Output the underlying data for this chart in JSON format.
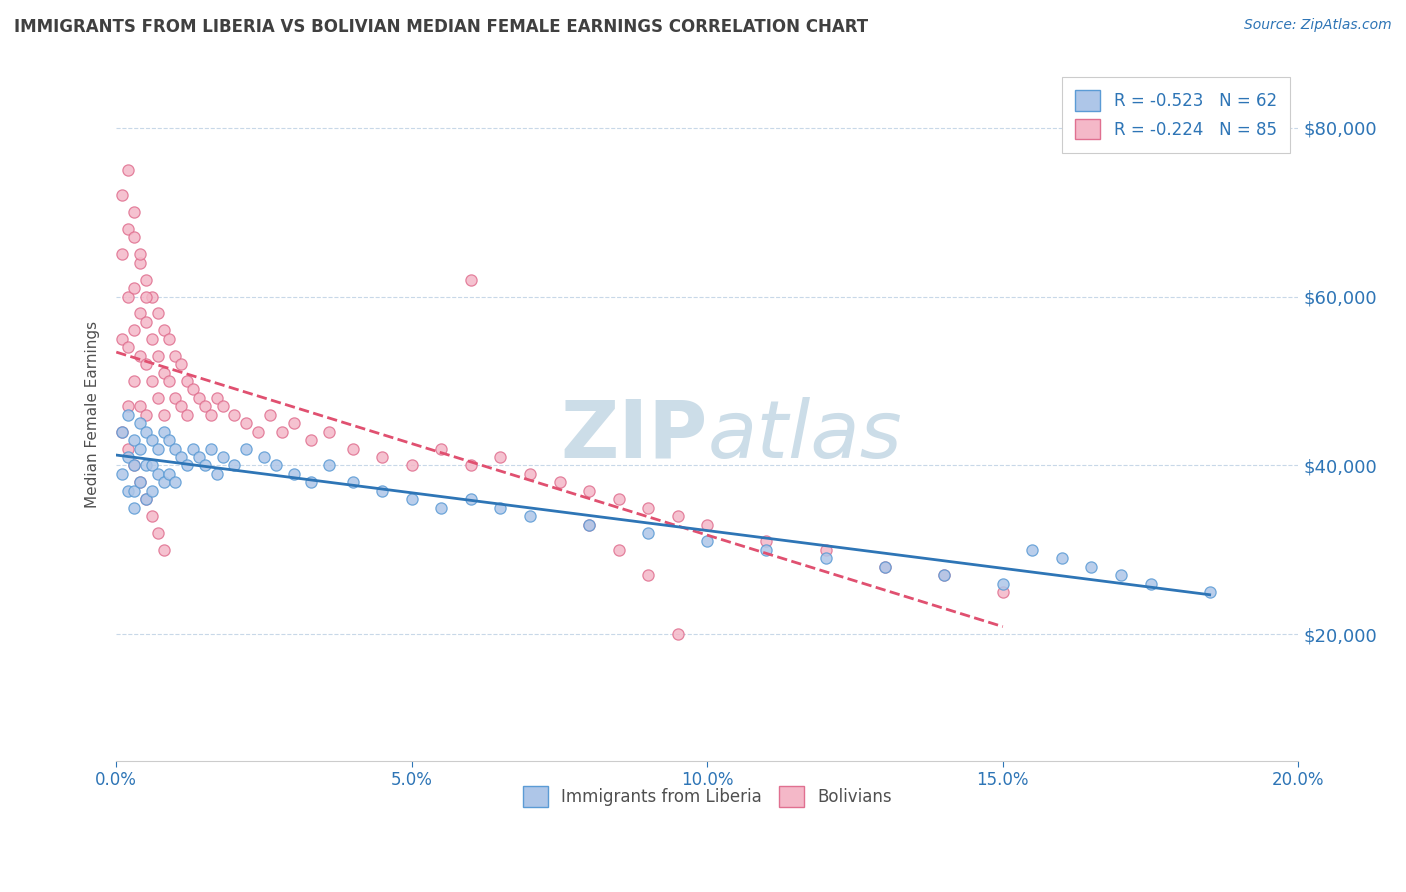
{
  "title": "IMMIGRANTS FROM LIBERIA VS BOLIVIAN MEDIAN FEMALE EARNINGS CORRELATION CHART",
  "source_text": "Source: ZipAtlas.com",
  "ylabel": "Median Female Earnings",
  "x_min": 0.0,
  "x_max": 0.2,
  "y_min": 5000,
  "y_max": 87000,
  "yticks": [
    20000,
    40000,
    60000,
    80000
  ],
  "ytick_labels": [
    "$20,000",
    "$40,000",
    "$60,000",
    "$80,000"
  ],
  "xticks": [
    0.0,
    0.05,
    0.1,
    0.15,
    0.2
  ],
  "xtick_labels": [
    "0.0%",
    "5.0%",
    "10.0%",
    "15.0%",
    "20.0%"
  ],
  "series1_name": "Immigrants from Liberia",
  "series1_color": "#aec6e8",
  "series1_edge_color": "#5b9bd5",
  "series1_R": -0.523,
  "series1_N": 62,
  "series1_line_color": "#2e75b6",
  "series2_name": "Bolivians",
  "series2_color": "#f4b8c8",
  "series2_edge_color": "#e07090",
  "series2_R": -0.224,
  "series2_N": 85,
  "series2_line_color": "#e05070",
  "legend_color": "#2e75b6",
  "title_color": "#404040",
  "axis_label_color": "#505050",
  "tick_color": "#2e75b6",
  "grid_color": "#c8d8e8",
  "watermark_color": "#ccdde8",
  "background_color": "#ffffff",
  "series1_x": [
    0.001,
    0.001,
    0.002,
    0.002,
    0.002,
    0.003,
    0.003,
    0.003,
    0.003,
    0.004,
    0.004,
    0.004,
    0.005,
    0.005,
    0.005,
    0.006,
    0.006,
    0.006,
    0.007,
    0.007,
    0.008,
    0.008,
    0.009,
    0.009,
    0.01,
    0.01,
    0.011,
    0.012,
    0.013,
    0.014,
    0.015,
    0.016,
    0.017,
    0.018,
    0.02,
    0.022,
    0.025,
    0.027,
    0.03,
    0.033,
    0.036,
    0.04,
    0.045,
    0.05,
    0.055,
    0.06,
    0.065,
    0.07,
    0.08,
    0.09,
    0.1,
    0.11,
    0.12,
    0.13,
    0.14,
    0.15,
    0.155,
    0.16,
    0.165,
    0.17,
    0.175,
    0.185
  ],
  "series1_y": [
    44000,
    39000,
    46000,
    41000,
    37000,
    43000,
    40000,
    37000,
    35000,
    45000,
    42000,
    38000,
    44000,
    40000,
    36000,
    43000,
    40000,
    37000,
    42000,
    39000,
    44000,
    38000,
    43000,
    39000,
    42000,
    38000,
    41000,
    40000,
    42000,
    41000,
    40000,
    42000,
    39000,
    41000,
    40000,
    42000,
    41000,
    40000,
    39000,
    38000,
    40000,
    38000,
    37000,
    36000,
    35000,
    36000,
    35000,
    34000,
    33000,
    32000,
    31000,
    30000,
    29000,
    28000,
    27000,
    26000,
    30000,
    29000,
    28000,
    27000,
    26000,
    25000
  ],
  "series2_x": [
    0.001,
    0.001,
    0.001,
    0.002,
    0.002,
    0.002,
    0.002,
    0.003,
    0.003,
    0.003,
    0.003,
    0.004,
    0.004,
    0.004,
    0.004,
    0.005,
    0.005,
    0.005,
    0.005,
    0.006,
    0.006,
    0.006,
    0.007,
    0.007,
    0.007,
    0.008,
    0.008,
    0.008,
    0.009,
    0.009,
    0.01,
    0.01,
    0.011,
    0.011,
    0.012,
    0.012,
    0.013,
    0.014,
    0.015,
    0.016,
    0.017,
    0.018,
    0.02,
    0.022,
    0.024,
    0.026,
    0.028,
    0.03,
    0.033,
    0.036,
    0.04,
    0.045,
    0.05,
    0.055,
    0.06,
    0.065,
    0.07,
    0.075,
    0.08,
    0.085,
    0.09,
    0.095,
    0.1,
    0.11,
    0.12,
    0.13,
    0.14,
    0.15,
    0.001,
    0.002,
    0.003,
    0.004,
    0.005,
    0.006,
    0.007,
    0.008,
    0.002,
    0.003,
    0.004,
    0.005,
    0.06,
    0.08,
    0.085,
    0.09,
    0.095
  ],
  "series2_y": [
    72000,
    65000,
    55000,
    68000,
    60000,
    54000,
    47000,
    67000,
    61000,
    56000,
    50000,
    64000,
    58000,
    53000,
    47000,
    62000,
    57000,
    52000,
    46000,
    60000,
    55000,
    50000,
    58000,
    53000,
    48000,
    56000,
    51000,
    46000,
    55000,
    50000,
    53000,
    48000,
    52000,
    47000,
    50000,
    46000,
    49000,
    48000,
    47000,
    46000,
    48000,
    47000,
    46000,
    45000,
    44000,
    46000,
    44000,
    45000,
    43000,
    44000,
    42000,
    41000,
    40000,
    42000,
    40000,
    41000,
    39000,
    38000,
    37000,
    36000,
    35000,
    34000,
    33000,
    31000,
    30000,
    28000,
    27000,
    25000,
    44000,
    42000,
    40000,
    38000,
    36000,
    34000,
    32000,
    30000,
    75000,
    70000,
    65000,
    60000,
    62000,
    33000,
    30000,
    27000,
    20000
  ]
}
